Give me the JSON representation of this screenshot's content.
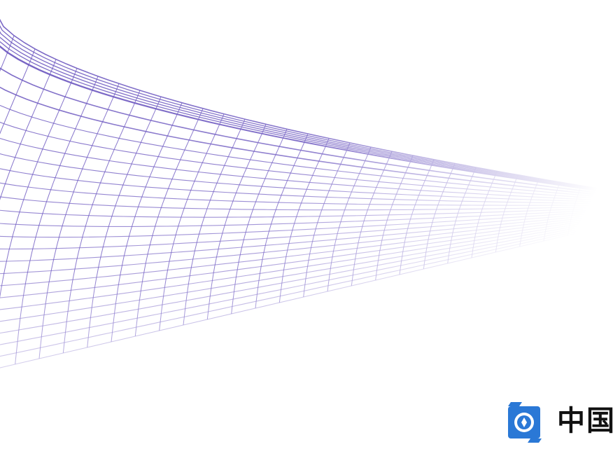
{
  "brand": {
    "text": "中国",
    "logo_icon": "blue-coin-scroll-logo-icon",
    "logo_color": "#2a78d6"
  },
  "mesh": {
    "line_color": "#6a55bf",
    "style": "perspective-wire-mesh"
  }
}
